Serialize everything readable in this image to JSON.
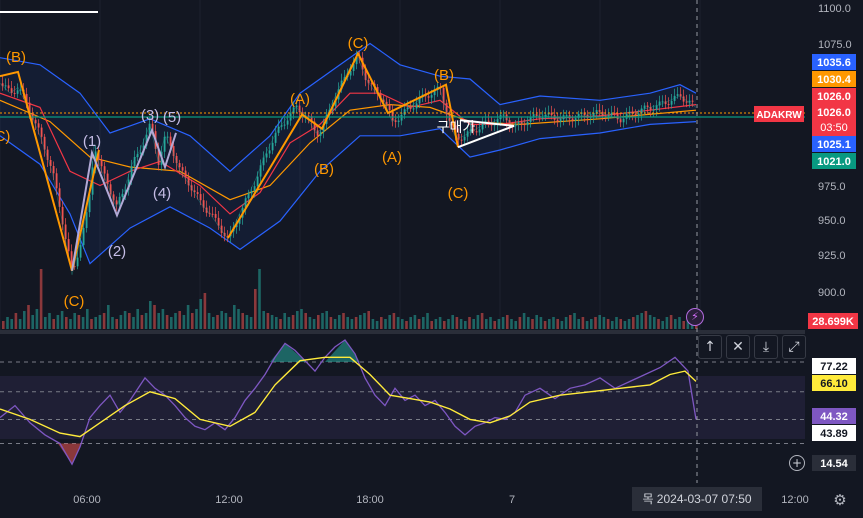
{
  "chart_data": [
    {
      "type": "line",
      "symbol_tag": "ADAKRW",
      "countdown": "03:50",
      "y_ticks": [
        "1100.0",
        "1075.0",
        "1026.0",
        "975.0",
        "950.0",
        "925.0",
        "900.0"
      ],
      "x_ticks": [
        "06:00",
        "12:00",
        "18:00",
        "7",
        "12:00"
      ],
      "price_tags": [
        {
          "value": "1035.6",
          "color": "#2962ff"
        },
        {
          "value": "1030.4",
          "color": "#ff9800"
        },
        {
          "value": "1026.0",
          "color": "#f23645"
        },
        {
          "value": "1025.1",
          "color": "#2962ff"
        },
        {
          "value": "1021.0",
          "color": "#089981"
        }
      ],
      "volume_tag": {
        "value": "28.699K",
        "color": "#f23645"
      },
      "wave_labels": [
        "(B)",
        "(C)",
        "(1)",
        "(2)",
        "(3)",
        "(4)",
        "(5)",
        "(A)",
        "(B)",
        "(C)",
        "(A)",
        "(B)",
        "(C)",
        "(C)"
      ],
      "annotation": "구매가",
      "close_path": [
        [
          0,
          1047
        ],
        [
          10,
          1040
        ],
        [
          18,
          1044
        ],
        [
          28,
          1030
        ],
        [
          40,
          1010
        ],
        [
          52,
          985
        ],
        [
          62,
          950
        ],
        [
          72,
          912
        ],
        [
          80,
          935
        ],
        [
          88,
          960
        ],
        [
          94,
          1004
        ],
        [
          100,
          988
        ],
        [
          108,
          975
        ],
        [
          116,
          960
        ],
        [
          124,
          972
        ],
        [
          132,
          990
        ],
        [
          140,
          1000
        ],
        [
          150,
          1018
        ],
        [
          158,
          992
        ],
        [
          165,
          1010
        ],
        [
          172,
          1000
        ],
        [
          180,
          985
        ],
        [
          190,
          975
        ],
        [
          200,
          963
        ],
        [
          210,
          955
        ],
        [
          220,
          945
        ],
        [
          228,
          937
        ],
        [
          236,
          950
        ],
        [
          246,
          965
        ],
        [
          256,
          980
        ],
        [
          266,
          998
        ],
        [
          276,
          1012
        ],
        [
          286,
          1022
        ],
        [
          296,
          1030
        ],
        [
          306,
          1024
        ],
        [
          316,
          1012
        ],
        [
          322,
          1015
        ],
        [
          330,
          1030
        ],
        [
          340,
          1045
        ],
        [
          350,
          1058
        ],
        [
          358,
          1065
        ],
        [
          366,
          1050
        ],
        [
          374,
          1042
        ],
        [
          384,
          1035
        ],
        [
          392,
          1020
        ],
        [
          400,
          1024
        ],
        [
          410,
          1030
        ],
        [
          420,
          1036
        ],
        [
          430,
          1040
        ],
        [
          440,
          1043
        ],
        [
          448,
          1022
        ],
        [
          456,
          1008
        ],
        [
          464,
          1010
        ],
        [
          474,
          1014
        ],
        [
          484,
          1018
        ],
        [
          494,
          1020
        ],
        [
          504,
          1024
        ],
        [
          514,
          1016
        ],
        [
          524,
          1020
        ],
        [
          540,
          1025
        ],
        [
          560,
          1022
        ],
        [
          580,
          1024
        ],
        [
          600,
          1026
        ],
        [
          620,
          1022
        ],
        [
          640,
          1028
        ],
        [
          660,
          1032
        ],
        [
          680,
          1038
        ],
        [
          696,
          1030
        ]
      ],
      "ema_short": [
        [
          0,
          1040
        ],
        [
          40,
          1030
        ],
        [
          70,
          985
        ],
        [
          100,
          975
        ],
        [
          130,
          985
        ],
        [
          160,
          992
        ],
        [
          200,
          975
        ],
        [
          230,
          955
        ],
        [
          260,
          970
        ],
        [
          290,
          1005
        ],
        [
          320,
          1018
        ],
        [
          350,
          1040
        ],
        [
          380,
          1040
        ],
        [
          410,
          1030
        ],
        [
          440,
          1035
        ],
        [
          470,
          1018
        ],
        [
          500,
          1018
        ],
        [
          540,
          1022
        ],
        [
          600,
          1024
        ],
        [
          650,
          1028
        ],
        [
          696,
          1032
        ]
      ],
      "ema_long": [
        [
          0,
          1035
        ],
        [
          50,
          1020
        ],
        [
          90,
          995
        ],
        [
          130,
          988
        ],
        [
          180,
          985
        ],
        [
          230,
          965
        ],
        [
          270,
          975
        ],
        [
          310,
          1005
        ],
        [
          350,
          1028
        ],
        [
          390,
          1032
        ],
        [
          430,
          1030
        ],
        [
          470,
          1020
        ],
        [
          520,
          1018
        ],
        [
          600,
          1022
        ],
        [
          696,
          1028
        ]
      ],
      "bb_upper": [
        [
          0,
          1065
        ],
        [
          40,
          1060
        ],
        [
          80,
          1040
        ],
        [
          110,
          1012
        ],
        [
          150,
          1022
        ],
        [
          190,
          1010
        ],
        [
          230,
          985
        ],
        [
          270,
          1010
        ],
        [
          300,
          1040
        ],
        [
          340,
          1060
        ],
        [
          370,
          1075
        ],
        [
          400,
          1060
        ],
        [
          440,
          1052
        ],
        [
          470,
          1050
        ],
        [
          500,
          1032
        ],
        [
          540,
          1038
        ],
        [
          600,
          1035
        ],
        [
          650,
          1040
        ],
        [
          680,
          1046
        ],
        [
          696,
          1040
        ]
      ],
      "bb_lower": [
        [
          0,
          1010
        ],
        [
          40,
          990
        ],
        [
          70,
          955
        ],
        [
          90,
          920
        ],
        [
          130,
          945
        ],
        [
          170,
          960
        ],
        [
          210,
          945
        ],
        [
          240,
          930
        ],
        [
          280,
          950
        ],
        [
          320,
          985
        ],
        [
          360,
          1010
        ],
        [
          400,
          1010
        ],
        [
          440,
          1015
        ],
        [
          470,
          995
        ],
        [
          500,
          1000
        ],
        [
          540,
          1008
        ],
        [
          600,
          1012
        ],
        [
          650,
          1018
        ],
        [
          696,
          1020
        ]
      ],
      "volume": [
        4,
        6,
        5,
        8,
        5,
        9,
        12,
        7,
        10,
        30,
        6,
        8,
        5,
        7,
        9,
        6,
        5,
        8,
        7,
        6,
        10,
        5,
        6,
        7,
        8,
        12,
        6,
        5,
        7,
        9,
        8,
        6,
        10,
        7,
        8,
        14,
        12,
        8,
        10,
        7,
        6,
        8,
        9,
        7,
        12,
        8,
        10,
        15,
        18,
        8,
        6,
        7,
        9,
        8,
        6,
        12,
        10,
        8,
        7,
        6,
        20,
        30,
        9,
        8,
        7,
        6,
        5,
        8,
        6,
        7,
        9,
        10,
        8,
        6,
        5,
        7,
        8,
        9,
        6,
        5,
        7,
        8,
        6,
        5,
        6,
        7,
        8,
        9,
        5,
        4,
        6,
        5,
        7,
        8,
        6,
        5,
        4,
        6,
        7,
        5,
        6,
        8,
        4,
        5,
        6,
        4,
        5,
        7,
        6,
        5,
        4,
        6,
        5,
        7,
        8,
        5,
        6,
        4,
        5,
        6,
        7,
        5,
        4,
        6,
        8,
        6,
        5,
        7,
        6,
        4,
        5,
        6,
        5,
        4,
        6,
        7,
        8,
        5,
        6,
        4,
        5,
        6,
        7,
        6,
        5,
        4,
        6,
        5,
        4,
        5,
        6,
        7,
        8,
        9,
        7,
        6,
        5,
        4,
        6,
        7,
        5,
        6,
        4,
        5,
        6,
        4
      ]
    },
    {
      "type": "line",
      "ylim": [
        10,
        90
      ],
      "levels": [
        77.22,
        60,
        43.89,
        30
      ],
      "value_tags": [
        {
          "value": "77.22",
          "bg": "#ffffff",
          "fg": "#131722"
        },
        {
          "value": "66.10",
          "bg": "#ffeb3b",
          "fg": "#131722"
        },
        {
          "value": "44.32",
          "bg": "#7e57c2",
          "fg": "#ffffff"
        },
        {
          "value": "43.89",
          "bg": "#ffffff",
          "fg": "#131722"
        },
        {
          "value": "14.54",
          "bg": "#2a2e39",
          "fg": "#ffffff"
        }
      ],
      "rsi": [
        [
          0,
          45
        ],
        [
          15,
          52
        ],
        [
          30,
          42
        ],
        [
          45,
          35
        ],
        [
          60,
          30
        ],
        [
          72,
          18
        ],
        [
          80,
          28
        ],
        [
          90,
          45
        ],
        [
          100,
          52
        ],
        [
          110,
          58
        ],
        [
          120,
          48
        ],
        [
          130,
          55
        ],
        [
          145,
          68
        ],
        [
          155,
          62
        ],
        [
          165,
          58
        ],
        [
          175,
          52
        ],
        [
          185,
          45
        ],
        [
          195,
          40
        ],
        [
          205,
          38
        ],
        [
          215,
          42
        ],
        [
          225,
          38
        ],
        [
          235,
          45
        ],
        [
          245,
          55
        ],
        [
          255,
          62
        ],
        [
          265,
          70
        ],
        [
          275,
          80
        ],
        [
          285,
          88
        ],
        [
          295,
          84
        ],
        [
          305,
          78
        ],
        [
          315,
          72
        ],
        [
          325,
          80
        ],
        [
          335,
          86
        ],
        [
          345,
          90
        ],
        [
          355,
          82
        ],
        [
          365,
          68
        ],
        [
          375,
          58
        ],
        [
          385,
          52
        ],
        [
          395,
          62
        ],
        [
          405,
          55
        ],
        [
          415,
          58
        ],
        [
          425,
          52
        ],
        [
          435,
          55
        ],
        [
          445,
          48
        ],
        [
          455,
          40
        ],
        [
          465,
          35
        ],
        [
          475,
          40
        ],
        [
          485,
          42
        ],
        [
          495,
          45
        ],
        [
          505,
          44
        ],
        [
          515,
          48
        ],
        [
          525,
          58
        ],
        [
          540,
          62
        ],
        [
          555,
          56
        ],
        [
          570,
          62
        ],
        [
          585,
          64
        ],
        [
          600,
          68
        ],
        [
          615,
          62
        ],
        [
          630,
          66
        ],
        [
          645,
          70
        ],
        [
          660,
          74
        ],
        [
          675,
          80
        ],
        [
          688,
          72
        ],
        [
          696,
          44
        ]
      ],
      "signal": [
        [
          0,
          50
        ],
        [
          30,
          44
        ],
        [
          60,
          36
        ],
        [
          80,
          34
        ],
        [
          100,
          42
        ],
        [
          125,
          52
        ],
        [
          150,
          60
        ],
        [
          175,
          56
        ],
        [
          200,
          44
        ],
        [
          230,
          40
        ],
        [
          255,
          48
        ],
        [
          275,
          64
        ],
        [
          300,
          78
        ],
        [
          325,
          80
        ],
        [
          350,
          80
        ],
        [
          370,
          70
        ],
        [
          390,
          58
        ],
        [
          410,
          56
        ],
        [
          430,
          54
        ],
        [
          450,
          50
        ],
        [
          470,
          44
        ],
        [
          490,
          42
        ],
        [
          510,
          46
        ],
        [
          530,
          54
        ],
        [
          560,
          58
        ],
        [
          590,
          60
        ],
        [
          620,
          62
        ],
        [
          650,
          64
        ],
        [
          670,
          70
        ],
        [
          685,
          72
        ],
        [
          696,
          66
        ]
      ]
    }
  ],
  "footer": {
    "date_badge": "목 2024-03-07   07:50"
  },
  "toolbar": {
    "up": "↑",
    "close": "✕",
    "collapse": "⤓",
    "maximize": "⤢"
  },
  "icons": {
    "bolt": "⚡",
    "settings": "⚙",
    "add": "+"
  }
}
